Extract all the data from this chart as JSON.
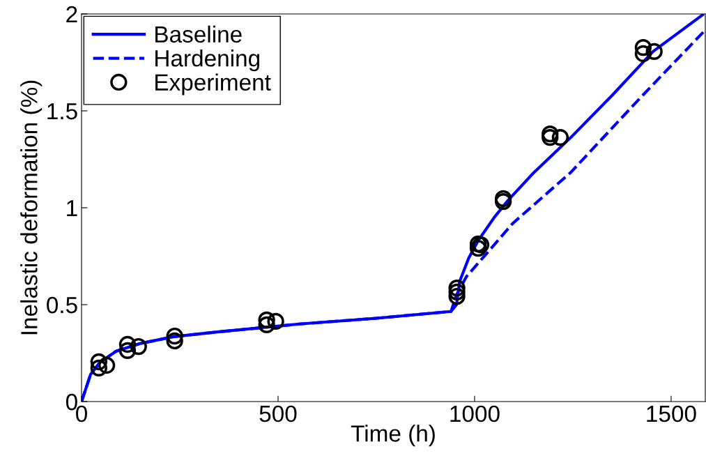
{
  "chart_data": {
    "type": "line",
    "xlabel": "Time (h)",
    "ylabel": "Inelastic deformation (%)",
    "xlim": [
      0,
      1587
    ],
    "ylim": [
      0,
      2
    ],
    "xticks": [
      0,
      500,
      1000,
      1500
    ],
    "yticks": [
      0,
      0.5,
      1,
      1.5,
      2
    ],
    "grid": false,
    "legend": "top left",
    "series": [
      {
        "name": "Baseline",
        "color": "#0000ff",
        "line_style": "solid",
        "marker": "none",
        "x": [
          0,
          5,
          23,
          46,
          88,
          150,
          235,
          350,
          554,
          750,
          940,
          954,
          962,
          985,
          1009,
          1050,
          1086,
          1150,
          1245,
          1350,
          1454,
          1580
        ],
        "values": [
          0,
          0.03,
          0.14,
          0.2,
          0.26,
          0.3,
          0.335,
          0.36,
          0.4,
          0.43,
          0.465,
          0.5,
          0.62,
          0.74,
          0.83,
          0.95,
          1.04,
          1.18,
          1.363,
          1.58,
          1.806,
          1.995
        ]
      },
      {
        "name": "Hardening",
        "color": "#0000ff",
        "line_style": "dashed",
        "marker": "none",
        "x": [
          0,
          5,
          23,
          46,
          88,
          150,
          235,
          350,
          554,
          750,
          940,
          954,
          979,
          1098,
          1245,
          1422,
          1587
        ],
        "values": [
          0,
          0.03,
          0.14,
          0.2,
          0.26,
          0.3,
          0.335,
          0.36,
          0.4,
          0.43,
          0.465,
          0.55,
          0.644,
          0.921,
          1.183,
          1.568,
          1.917
        ]
      },
      {
        "name": "Experiment",
        "type": "scatter",
        "color": "#000000",
        "marker": "circle",
        "x": [
          44,
          44,
          64,
          117,
          117,
          145,
          237,
          237,
          471,
          471,
          494,
          955,
          955,
          955,
          1009,
          1009,
          1016,
          1073,
          1073,
          1192,
          1192,
          1218,
          1429,
          1429,
          1457
        ],
        "values": [
          0.205,
          0.173,
          0.187,
          0.295,
          0.263,
          0.284,
          0.338,
          0.313,
          0.421,
          0.396,
          0.414,
          0.586,
          0.565,
          0.543,
          0.813,
          0.791,
          0.809,
          1.047,
          1.032,
          1.381,
          1.363,
          1.363,
          1.827,
          1.795,
          1.806
        ]
      }
    ]
  }
}
